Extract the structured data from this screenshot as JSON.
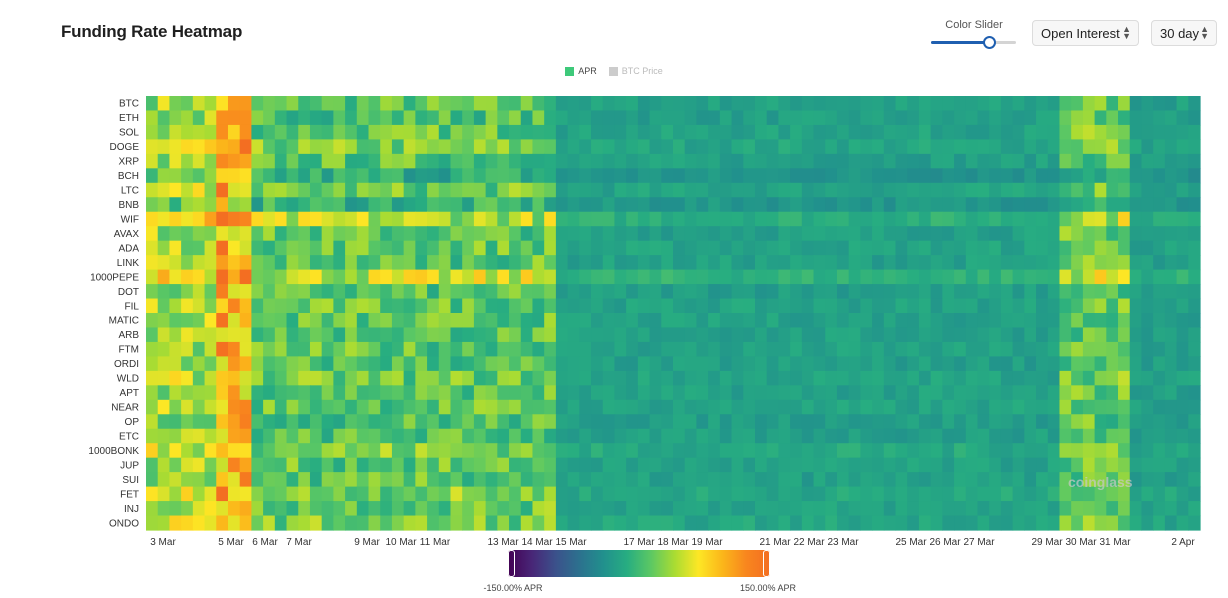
{
  "page": {
    "title": "Funding Rate Heatmap"
  },
  "controls": {
    "slider_label": "Color Slider",
    "slider_value": 0.68,
    "metric_select": "Open Interest",
    "range_select": "30 day",
    "chevron_icon": "up-down-chevron-icon"
  },
  "legend": [
    {
      "label": "APR",
      "color": "#3ec97a",
      "active": true
    },
    {
      "label": "BTC Price",
      "color": "#cccccc",
      "active": false
    }
  ],
  "watermark": "coinglass",
  "colorbar": {
    "min_label": "-150.00% APR",
    "max_label": "150.00% APR",
    "min": -150,
    "max": 150
  },
  "chart_data": {
    "type": "heatmap",
    "title": "Funding Rate Heatmap",
    "value_unit": "APR (%)",
    "color_range": [
      -150,
      150
    ],
    "colorscale": "viridis-to-orange",
    "y_categories": [
      "BTC",
      "ETH",
      "SOL",
      "DOGE",
      "XRP",
      "BCH",
      "LTC",
      "BNB",
      "WIF",
      "AVAX",
      "ADA",
      "LINK",
      "1000PEPE",
      "DOT",
      "FIL",
      "MATIC",
      "ARB",
      "FTM",
      "ORDI",
      "WLD",
      "APT",
      "NEAR",
      "OP",
      "ETC",
      "1000BONK",
      "JUP",
      "SUI",
      "FET",
      "INJ",
      "ONDO"
    ],
    "x_tick_labels": [
      "3 Mar",
      "5 Mar",
      "6 Mar",
      "7 Mar",
      "9 Mar",
      "10 Mar",
      "11 Mar",
      "13 Mar",
      "14 Mar",
      "15 Mar",
      "17 Mar",
      "18 Mar",
      "19 Mar",
      "21 Mar",
      "22 Mar",
      "23 Mar",
      "25 Mar",
      "26 Mar",
      "27 Mar",
      "29 Mar",
      "30 Mar",
      "31 Mar",
      "2 Apr"
    ],
    "x_range": [
      "3 Mar",
      "2 Apr"
    ],
    "columns": 90,
    "regimes": [
      {
        "from": "3 Mar",
        "to": "4 Mar",
        "apr": 75
      },
      {
        "from": "5 Mar",
        "to": "5 Mar",
        "apr": 115
      },
      {
        "from": "6 Mar",
        "to": "14 Mar",
        "apr": 50
      },
      {
        "from": "15 Mar",
        "to": "29 Mar",
        "apr": 15
      },
      {
        "from": "30 Mar",
        "to": "31 Mar",
        "apr": 55
      },
      {
        "from": "1 Apr",
        "to": "2 Apr",
        "apr": 12
      }
    ],
    "row_offsets_apr": {
      "BTC": 5,
      "ETH": 0,
      "SOL": 8,
      "DOGE": 15,
      "XRP": 3,
      "BCH": -20,
      "LTC": 10,
      "BNB": -15,
      "WIF": 35,
      "AVAX": 5,
      "ADA": 10,
      "LINK": 5,
      "1000PEPE": 40,
      "DOT": 0,
      "FIL": 8,
      "MATIC": 5,
      "ARB": 3,
      "FTM": 5,
      "ORDI": 0,
      "WLD": 10,
      "APT": 5,
      "NEAR": 8,
      "OP": 0,
      "ETC": 0,
      "1000BONK": 20,
      "JUP": 5,
      "SUI": 3,
      "FET": 18,
      "INJ": 10,
      "ONDO": 15
    }
  }
}
